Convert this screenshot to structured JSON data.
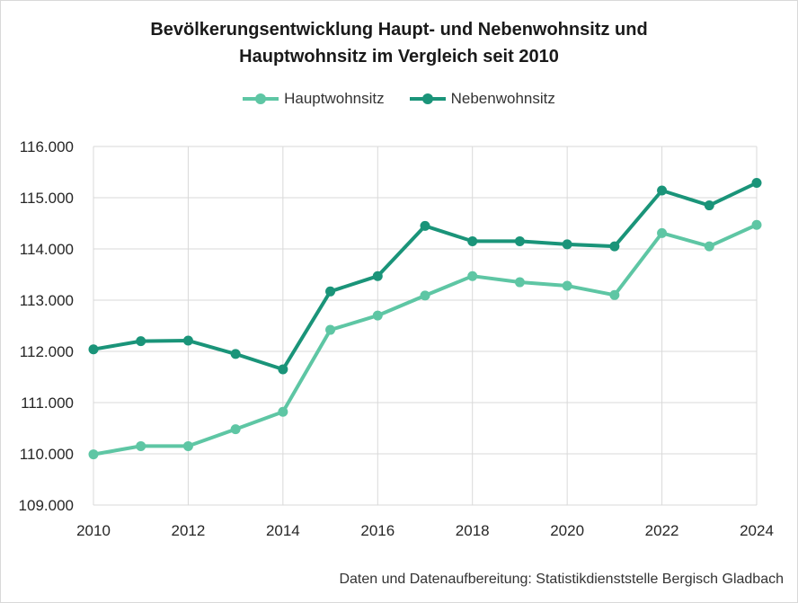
{
  "chart_data": {
    "type": "line",
    "title_line1": "Bevölkerungsentwicklung Haupt- und Nebenwohnsitz und",
    "title_line2": "Hauptwohnsitz im Vergleich seit 2010",
    "xlabel": "",
    "ylabel": "",
    "x": [
      2010,
      2011,
      2012,
      2013,
      2014,
      2015,
      2016,
      2017,
      2018,
      2019,
      2020,
      2021,
      2022,
      2023,
      2024
    ],
    "x_tick_labels": [
      "2010",
      "2012",
      "2014",
      "2016",
      "2018",
      "2020",
      "2022",
      "2024"
    ],
    "y_tick_labels": [
      "109.000",
      "110.000",
      "111.000",
      "112.000",
      "113.000",
      "114.000",
      "115.000",
      "116.000"
    ],
    "ylim": [
      109000,
      116000
    ],
    "xlim": [
      2010,
      2024
    ],
    "grid": true,
    "legend_position": "top-center",
    "series": [
      {
        "name": "Hauptwohnsitz",
        "color": "#5ec6a4",
        "values": [
          109990,
          110150,
          110150,
          110480,
          110820,
          112420,
          112700,
          113090,
          113470,
          113350,
          113280,
          113100,
          114310,
          114050,
          114470
        ]
      },
      {
        "name": "Nebenwohnsitz",
        "color": "#1a9479",
        "values": [
          112040,
          112200,
          112210,
          111950,
          111650,
          113170,
          113470,
          114450,
          114150,
          114150,
          114090,
          114050,
          115140,
          114850,
          115290
        ]
      }
    ]
  },
  "source_note": "Daten und Datenaufbereitung: Statistikdienststelle Bergisch Gladbach"
}
